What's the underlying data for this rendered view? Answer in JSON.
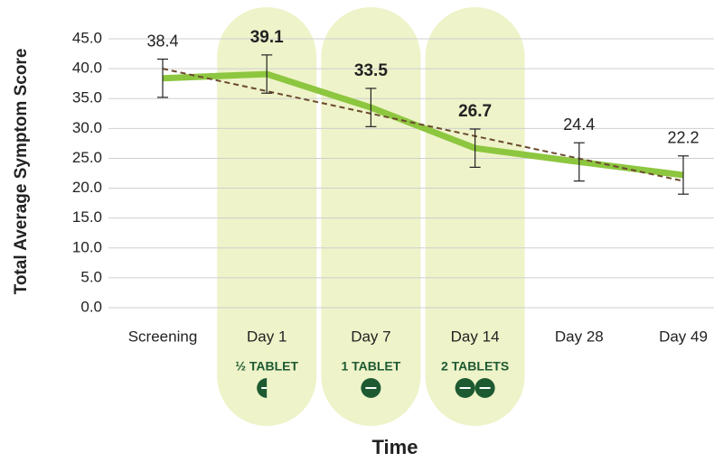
{
  "chart_data": {
    "type": "line",
    "y_label": "Total Average Symptom Score",
    "x_label": "Time",
    "categories": [
      "Screening",
      "Day 1",
      "Day 7",
      "Day 14",
      "Day 28",
      "Day 49"
    ],
    "values": [
      38.4,
      39.1,
      33.5,
      26.7,
      24.4,
      22.2
    ],
    "errors": [
      3.2,
      3.2,
      3.2,
      3.2,
      3.2,
      3.2
    ],
    "trend": [
      40.0,
      21.2
    ],
    "doses": [
      null,
      "½ TABLET",
      "1 TABLET",
      "2 TABLETS",
      null,
      null
    ],
    "color": "#8dc63f",
    "trend_color": "#6b4a2e",
    "band_color": "#eef3c9",
    "dose_color": "#1d5a32",
    "ylim": [
      0,
      45
    ],
    "yticks": [
      {
        "value": 0,
        "label": "0.0"
      },
      {
        "value": 5,
        "label": "5.0"
      },
      {
        "value": 10,
        "label": "10.0"
      },
      {
        "value": 15,
        "label": "15.0"
      },
      {
        "value": 20,
        "label": "20.0"
      },
      {
        "value": 25,
        "label": "25.0"
      },
      {
        "value": 30,
        "label": "30.0"
      },
      {
        "value": 35,
        "label": "35.0"
      },
      {
        "value": 40,
        "label": "40.0"
      },
      {
        "value": 45,
        "label": "45.0"
      }
    ],
    "grid": true
  }
}
